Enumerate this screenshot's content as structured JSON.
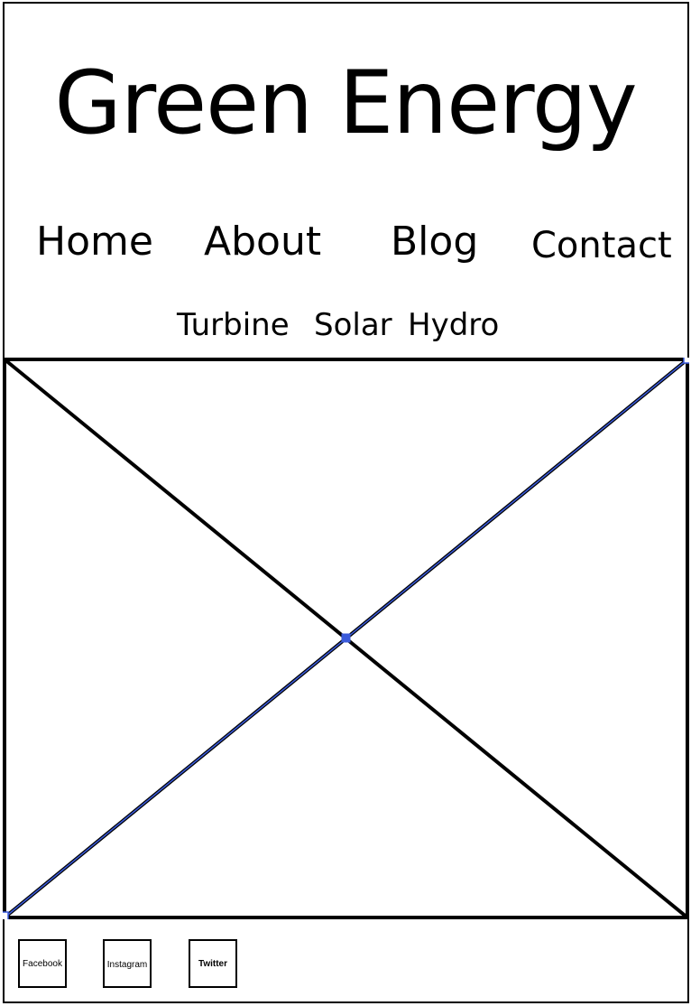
{
  "site": {
    "title": "Green Energy"
  },
  "nav": {
    "items": [
      {
        "label": "Home"
      },
      {
        "label": "About"
      },
      {
        "label": "Blog"
      },
      {
        "label": "Contact"
      }
    ]
  },
  "subnav": {
    "items": [
      {
        "label": "Turbine"
      },
      {
        "label": "Solar"
      },
      {
        "label": "Hydro"
      }
    ]
  },
  "hero": {
    "placeholder_icon": "image-placeholder-x",
    "selection_color": "#3b5bdb"
  },
  "footer": {
    "social": [
      {
        "label": "Facebook",
        "icon": "facebook-icon"
      },
      {
        "label": "Instagram",
        "icon": "instagram-icon"
      },
      {
        "label": "Twitter",
        "icon": "twitter-icon"
      }
    ]
  }
}
